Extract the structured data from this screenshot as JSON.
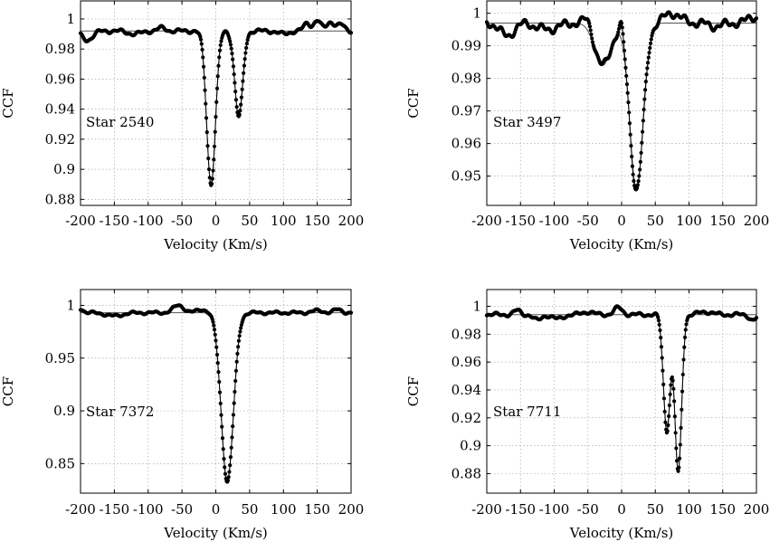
{
  "chart_data": [
    {
      "type": "line",
      "title": "",
      "annotation": "Star 2540",
      "xlabel": "Velocity (Km/s)",
      "ylabel": "CCF",
      "xlim": [
        -200,
        200
      ],
      "ylim": [
        0.876,
        1.012
      ],
      "x_ticks": [
        "-200",
        "-150",
        "-100",
        "-50",
        "0",
        "50",
        "100",
        "150",
        "200"
      ],
      "y_ticks": [
        "1",
        "0.98",
        "0.96",
        "0.94",
        "0.92",
        "0.9",
        "0.88"
      ],
      "y_tick_values": [
        1.0,
        0.98,
        0.96,
        0.94,
        0.92,
        0.9,
        0.88
      ],
      "continuum": 0.992,
      "model_dips": [
        {
          "center": -7,
          "depth": 0.102,
          "sigma": 6.5
        },
        {
          "center": 34,
          "depth": 0.057,
          "sigma": 6.0
        }
      ],
      "ripple": [
        {
          "center": -190,
          "amp": -0.006,
          "width": 8
        },
        {
          "center": -120,
          "amp": -0.002,
          "width": 10
        },
        {
          "center": -80,
          "amp": 0.002,
          "width": 6
        },
        {
          "center": 100,
          "amp": -0.002,
          "width": 8
        },
        {
          "center": 135,
          "amp": 0.005,
          "width": 5
        },
        {
          "center": 150,
          "amp": 0.007,
          "width": 5
        },
        {
          "center": 170,
          "amp": 0.006,
          "width": 6
        },
        {
          "center": 185,
          "amp": 0.004,
          "width": 5
        }
      ]
    },
    {
      "type": "line",
      "title": "",
      "annotation": "Star 3497",
      "xlabel": "Velocity (Km/s)",
      "ylabel": "CCF",
      "xlim": [
        -200,
        200
      ],
      "ylim": [
        0.941,
        1.0038
      ],
      "x_ticks": [
        "-200",
        "-150",
        "-100",
        "-50",
        "0",
        "50",
        "100",
        "150",
        "200"
      ],
      "y_ticks": [
        "1",
        "0.99",
        "0.98",
        "0.97",
        "0.96",
        "0.95"
      ],
      "y_tick_values": [
        1.0,
        0.99,
        0.98,
        0.97,
        0.96,
        0.95
      ],
      "continuum": 0.997,
      "model_dips": [
        {
          "center": -28,
          "depth": 0.013,
          "sigma": 12
        },
        {
          "center": 22,
          "depth": 0.051,
          "sigma": 10
        }
      ],
      "ripple": [
        {
          "center": -170,
          "amp": -0.004,
          "width": 10
        },
        {
          "center": -110,
          "amp": -0.002,
          "width": 15
        },
        {
          "center": -50,
          "amp": 0.003,
          "width": 6
        },
        {
          "center": 0,
          "amp": 0.004,
          "width": 3
        },
        {
          "center": 75,
          "amp": 0.003,
          "width": 12
        },
        {
          "center": 140,
          "amp": -0.001,
          "width": 10
        },
        {
          "center": 195,
          "amp": 0.002,
          "width": 8
        }
      ]
    },
    {
      "type": "line",
      "title": "",
      "annotation": "Star 7372",
      "xlabel": "Velocity (Km/s)",
      "ylabel": "CCF",
      "xlim": [
        -200,
        200
      ],
      "ylim": [
        0.822,
        1.015
      ],
      "x_ticks": [
        "-200",
        "-150",
        "-100",
        "-50",
        "0",
        "50",
        "100",
        "150",
        "200"
      ],
      "y_ticks": [
        "1",
        "0.95",
        "0.9",
        "0.85"
      ],
      "y_tick_values": [
        1.0,
        0.95,
        0.9,
        0.85
      ],
      "continuum": 0.993,
      "model_dips": [
        {
          "center": 17,
          "depth": 0.16,
          "sigma": 9
        }
      ],
      "ripple": [
        {
          "center": -200,
          "amp": 0.004,
          "width": 4
        },
        {
          "center": -150,
          "amp": -0.003,
          "width": 12
        },
        {
          "center": -55,
          "amp": 0.007,
          "width": 8
        },
        {
          "center": -20,
          "amp": 0.003,
          "width": 8
        },
        {
          "center": 150,
          "amp": 0.002,
          "width": 8
        },
        {
          "center": 180,
          "amp": 0.003,
          "width": 6
        }
      ]
    },
    {
      "type": "line",
      "title": "",
      "annotation": "Star 7711",
      "xlabel": "Velocity (Km/s)",
      "ylabel": "CCF",
      "xlim": [
        -200,
        200
      ],
      "ylim": [
        0.866,
        1.012
      ],
      "x_ticks": [
        "-200",
        "-150",
        "-100",
        "-50",
        "0",
        "50",
        "100",
        "150",
        "200"
      ],
      "y_ticks": [
        "1",
        "0.98",
        "0.96",
        "0.94",
        "0.92",
        "0.9",
        "0.88"
      ],
      "y_tick_values": [
        1.0,
        0.98,
        0.96,
        0.94,
        0.92,
        0.9,
        0.88
      ],
      "continuum": 0.994,
      "model_dips": [
        {
          "center": 67,
          "depth": 0.083,
          "sigma": 5
        },
        {
          "center": 84,
          "depth": 0.113,
          "sigma": 5
        }
      ],
      "ripple": [
        {
          "center": -155,
          "amp": 0.003,
          "width": 5
        },
        {
          "center": -125,
          "amp": -0.004,
          "width": 6
        },
        {
          "center": -95,
          "amp": -0.003,
          "width": 8
        },
        {
          "center": -50,
          "amp": 0.002,
          "width": 8
        },
        {
          "center": -5,
          "amp": 0.005,
          "width": 6
        },
        {
          "center": 125,
          "amp": 0.002,
          "width": 10
        },
        {
          "center": 195,
          "amp": -0.004,
          "width": 5
        }
      ]
    }
  ]
}
